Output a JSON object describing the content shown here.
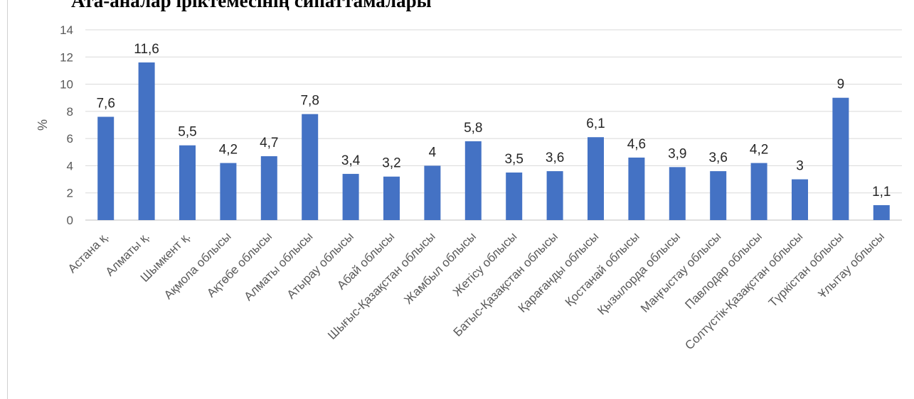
{
  "chart_data": {
    "type": "bar",
    "title": "Ата-аналар іріктемесінің сипаттамалары",
    "ylabel": "%",
    "xlabel": "",
    "ylim": [
      0,
      14
    ],
    "yticks": [
      0,
      2,
      4,
      6,
      8,
      10,
      12,
      14
    ],
    "grid": true,
    "bar_color": "#4472c4",
    "categories": [
      "Астана қ.",
      "Алматы қ.",
      "Шымкент қ.",
      "Ақмола облысы",
      "Ақтөбе облысы",
      "Алматы облысы",
      "Атырау облысы",
      "Абай облысы",
      "Шығыс-Қазақстан облысы",
      "Жамбыл облысы",
      "Жетісу облысы",
      "Батыс-Қазақстан облысы",
      "Қарағанды облысы",
      "Қостанай облысы",
      "Қызылорда облысы",
      "Маңғыстау облысы",
      "Павлодар облысы",
      "Солтүстік-Қазақстан облысы",
      "Түркістан облысы",
      "Ұлытау облысы"
    ],
    "values": [
      7.6,
      11.6,
      5.5,
      4.2,
      4.7,
      7.8,
      3.4,
      3.2,
      4,
      5.8,
      3.5,
      3.6,
      6.1,
      4.6,
      3.9,
      3.6,
      4.2,
      3,
      9,
      1.1
    ],
    "data_labels": [
      "7,6",
      "11,6",
      "5,5",
      "4,2",
      "4,7",
      "7,8",
      "3,4",
      "3,2",
      "4",
      "5,8",
      "3,5",
      "3,6",
      "6,1",
      "4,6",
      "3,9",
      "3,6",
      "4,2",
      "3",
      "9",
      "1,1"
    ]
  }
}
